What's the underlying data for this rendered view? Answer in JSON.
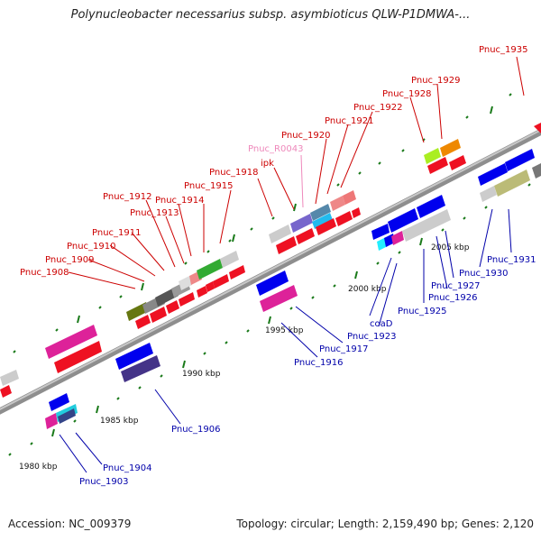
{
  "title": "Polynucleobacter necessarius subsp. asymbioticus QLW-P1DMWA-...",
  "accession": "Accession: NC_009379",
  "topology": "Topology: circular; Length: 2,159,490 bp; Genes: 2,120",
  "colors": {
    "red_label": "#cc0000",
    "blue_label": "#0000aa",
    "pink_label": "#ee88bb",
    "backbone": "#8c8c8c",
    "tick": "#1a7a1a"
  },
  "scale_labels": [
    "1980 kbp",
    "1985 kbp",
    "1990 kbp",
    "1995 kbp",
    "2000 kbp",
    "2005 kbp"
  ],
  "labels": {
    "Pnuc_1935": "Pnuc_1935",
    "Pnuc_1929": "Pnuc_1929",
    "Pnuc_1928": "Pnuc_1928",
    "Pnuc_1922": "Pnuc_1922",
    "Pnuc_1921": "Pnuc_1921",
    "Pnuc_1920": "Pnuc_1920",
    "Pnuc_R0043": "Pnuc_R0043",
    "ipk": "ipk",
    "Pnuc_1918": "Pnuc_1918",
    "Pnuc_1915": "Pnuc_1915",
    "Pnuc_1914": "Pnuc_1914",
    "Pnuc_1913": "Pnuc_1913",
    "Pnuc_1912": "Pnuc_1912",
    "Pnuc_1911": "Pnuc_1911",
    "Pnuc_1910": "Pnuc_1910",
    "Pnuc_1909": "Pnuc_1909",
    "Pnuc_1908": "Pnuc_1908",
    "Pnuc_1931": "Pnuc_1931",
    "Pnuc_1930": "Pnuc_1930",
    "Pnuc_1927": "Pnuc_1927",
    "Pnuc_1926": "Pnuc_1926",
    "Pnuc_1925": "Pnuc_1925",
    "Pnuc_1923": "Pnuc_1923",
    "coaD": "coaD",
    "Pnuc_1917": "Pnuc_1917",
    "Pnuc_1916": "Pnuc_1916",
    "Pnuc_1906": "Pnuc_1906",
    "Pnuc_1904": "Pnuc_1904",
    "Pnuc_1903": "Pnuc_1903"
  }
}
